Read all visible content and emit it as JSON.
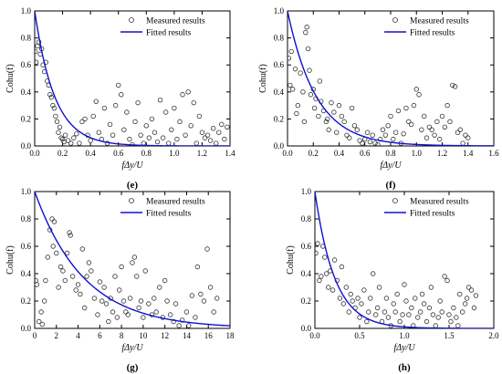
{
  "legend": {
    "measured": "Measured results",
    "fitted": "Fitted results"
  },
  "colors": {
    "fitted": "#1010d0",
    "marker": "#333333",
    "axis": "#000000"
  },
  "chart_data": [
    {
      "id": "e",
      "type": "scatter",
      "panel_label": "(e)",
      "xlabel": "fΔy/U",
      "ylabel": "Cohu(f)",
      "xlim": [
        0,
        1.4
      ],
      "ylim": [
        0,
        1.0
      ],
      "xticks": [
        "0.0",
        "0.2",
        "0.4",
        "0.6",
        "0.8",
        "1.0",
        "1.2",
        "1.4"
      ],
      "yticks": [
        "0.0",
        "0.2",
        "0.4",
        "0.6",
        "0.8",
        "1.0"
      ],
      "legend_position": "top-right",
      "fit_decay": 7.0,
      "series": [
        {
          "name": "Measured results",
          "x": [
            0.005,
            0.01,
            0.02,
            0.03,
            0.04,
            0.05,
            0.06,
            0.07,
            0.08,
            0.09,
            0.1,
            0.11,
            0.12,
            0.13,
            0.14,
            0.15,
            0.16,
            0.17,
            0.18,
            0.19,
            0.2,
            0.21,
            0.22,
            0.24,
            0.26,
            0.28,
            0.3,
            0.32,
            0.34,
            0.36,
            0.38,
            0.4,
            0.42,
            0.44,
            0.46,
            0.48,
            0.5,
            0.52,
            0.54,
            0.56,
            0.58,
            0.6,
            0.62,
            0.64,
            0.66,
            0.68,
            0.7,
            0.72,
            0.74,
            0.76,
            0.78,
            0.8,
            0.82,
            0.84,
            0.86,
            0.88,
            0.9,
            0.92,
            0.94,
            0.96,
            0.98,
            1.0,
            1.02,
            1.04,
            1.06,
            1.08,
            1.1,
            1.12,
            1.14,
            1.16,
            1.18,
            1.2,
            1.22,
            1.24,
            1.26,
            1.28,
            1.3,
            1.32,
            1.34,
            1.36,
            1.38
          ],
          "y": [
            0.7,
            0.62,
            0.74,
            0.77,
            0.68,
            0.72,
            0.6,
            0.55,
            0.62,
            0.48,
            0.45,
            0.38,
            0.36,
            0.3,
            0.28,
            0.22,
            0.18,
            0.1,
            0.14,
            0.06,
            0.05,
            0.03,
            0.08,
            0.04,
            0.02,
            0.06,
            0.09,
            0.02,
            0.18,
            0.2,
            0.08,
            0.04,
            0.22,
            0.33,
            0.1,
            0.05,
            0.28,
            0.02,
            0.16,
            0.08,
            0.3,
            0.45,
            0.38,
            0.12,
            0.25,
            0.05,
            0.01,
            0.18,
            0.32,
            0.08,
            0.02,
            0.15,
            0.06,
            0.2,
            0.1,
            0.03,
            0.34,
            0.06,
            0.25,
            0.02,
            0.12,
            0.28,
            0.05,
            0.18,
            0.38,
            0.08,
            0.4,
            0.15,
            0.32,
            0.02,
            0.22,
            0.1,
            0.06,
            0.08,
            0.04,
            0.13,
            0.02,
            0.1,
            0.16,
            0.05,
            0.14
          ]
        },
        {
          "name": "Fitted results",
          "x": [],
          "y": []
        }
      ]
    },
    {
      "id": "f",
      "type": "scatter",
      "panel_label": "(f)",
      "xlabel": "fΔy/U",
      "ylabel": "Cohu(f)",
      "xlim": [
        0,
        1.6
      ],
      "ylim": [
        0,
        1.0
      ],
      "xticks": [
        "0.0",
        "0.2",
        "0.4",
        "0.6",
        "0.8",
        "1.0",
        "1.2",
        "1.4",
        "1.6"
      ],
      "yticks": [
        "0.0",
        "0.2",
        "0.4",
        "0.6",
        "0.8",
        "1.0"
      ],
      "legend_position": "top-right",
      "fit_decay": 4.5,
      "series": [
        {
          "name": "Measured results",
          "x": [
            0.01,
            0.02,
            0.03,
            0.04,
            0.06,
            0.07,
            0.08,
            0.1,
            0.12,
            0.13,
            0.14,
            0.15,
            0.16,
            0.17,
            0.18,
            0.2,
            0.21,
            0.22,
            0.24,
            0.25,
            0.26,
            0.28,
            0.3,
            0.31,
            0.32,
            0.34,
            0.36,
            0.38,
            0.4,
            0.42,
            0.44,
            0.46,
            0.48,
            0.5,
            0.52,
            0.54,
            0.56,
            0.58,
            0.6,
            0.62,
            0.64,
            0.66,
            0.68,
            0.7,
            0.72,
            0.74,
            0.76,
            0.78,
            0.8,
            0.82,
            0.84,
            0.86,
            0.88,
            0.9,
            0.92,
            0.94,
            0.96,
            0.98,
            1.0,
            1.02,
            1.04,
            1.06,
            1.08,
            1.1,
            1.12,
            1.14,
            1.16,
            1.18,
            1.2,
            1.22,
            1.24,
            1.26,
            1.28,
            1.3,
            1.32,
            1.34,
            1.36,
            1.38,
            1.4
          ],
          "y": [
            0.65,
            0.45,
            0.7,
            0.42,
            0.57,
            0.24,
            0.3,
            0.54,
            0.4,
            0.18,
            0.84,
            0.88,
            0.72,
            0.56,
            0.38,
            0.42,
            0.28,
            0.35,
            0.22,
            0.48,
            0.33,
            0.26,
            0.18,
            0.2,
            0.12,
            0.32,
            0.25,
            0.1,
            0.3,
            0.22,
            0.18,
            0.08,
            0.06,
            0.28,
            0.15,
            0.12,
            0.04,
            0.02,
            0.05,
            0.1,
            0.03,
            0.08,
            0.02,
            0.01,
            0.05,
            0.12,
            0.08,
            0.15,
            0.22,
            0.05,
            0.1,
            0.26,
            0.02,
            0.09,
            0.28,
            0.18,
            0.16,
            0.3,
            0.42,
            0.38,
            0.12,
            0.22,
            0.06,
            0.14,
            0.12,
            0.08,
            0.18,
            0.05,
            0.22,
            0.14,
            0.3,
            0.18,
            0.45,
            0.44,
            0.1,
            0.12,
            0.02,
            0.08,
            0.06
          ]
        },
        {
          "name": "Fitted results",
          "x": [],
          "y": []
        }
      ]
    },
    {
      "id": "g",
      "type": "scatter",
      "panel_label": "(g)",
      "xlabel": "fΔy/U",
      "ylabel": "Cohu(f)",
      "xlim": [
        0,
        18
      ],
      "ylim": [
        0,
        1.0
      ],
      "xticks": [
        "0",
        "2",
        "4",
        "6",
        "8",
        "10",
        "12",
        "14",
        "16",
        "18"
      ],
      "yticks": [
        "0.0",
        "0.2",
        "0.4",
        "0.6",
        "0.8",
        "1.0"
      ],
      "legend_position": "top-right",
      "fit_decay": 0.22,
      "series": [
        {
          "name": "Measured results",
          "x": [
            0.1,
            0.2,
            0.4,
            0.6,
            0.7,
            0.9,
            1.0,
            1.2,
            1.4,
            1.6,
            1.7,
            1.8,
            2.0,
            2.2,
            2.4,
            2.6,
            2.8,
            3.0,
            3.2,
            3.3,
            3.5,
            3.8,
            4.0,
            4.2,
            4.4,
            4.6,
            4.8,
            5.0,
            5.2,
            5.5,
            5.8,
            6.0,
            6.2,
            6.4,
            6.6,
            6.8,
            7.0,
            7.2,
            7.4,
            7.6,
            7.8,
            8.0,
            8.2,
            8.4,
            8.6,
            8.8,
            9.0,
            9.2,
            9.4,
            9.6,
            9.8,
            10.0,
            10.2,
            10.5,
            10.8,
            11.0,
            11.2,
            11.5,
            11.8,
            12.0,
            12.2,
            12.5,
            12.8,
            13.0,
            13.3,
            13.6,
            14.0,
            14.2,
            14.5,
            14.8,
            15.0,
            15.3,
            15.6,
            15.9,
            16.2,
            16.5,
            16.8
          ],
          "y": [
            0.35,
            0.32,
            0.05,
            0.12,
            0.03,
            0.2,
            0.35,
            0.52,
            0.72,
            0.8,
            0.6,
            0.78,
            0.55,
            0.3,
            0.45,
            0.42,
            0.35,
            0.55,
            0.7,
            0.68,
            0.38,
            0.28,
            0.32,
            0.25,
            0.58,
            0.15,
            0.38,
            0.48,
            0.42,
            0.22,
            0.1,
            0.34,
            0.2,
            0.3,
            0.18,
            0.05,
            0.22,
            0.12,
            0.38,
            0.08,
            0.28,
            0.45,
            0.2,
            0.12,
            0.1,
            0.22,
            0.48,
            0.52,
            0.38,
            0.15,
            0.2,
            0.08,
            0.42,
            0.18,
            0.1,
            0.22,
            0.12,
            0.3,
            0.08,
            0.35,
            0.2,
            0.1,
            0.05,
            0.18,
            0.02,
            0.06,
            0.12,
            0.02,
            0.24,
            0.08,
            0.45,
            0.25,
            0.2,
            0.58,
            0.3,
            0.12,
            0.22
          ]
        },
        {
          "name": "Fitted results",
          "x": [],
          "y": []
        }
      ]
    },
    {
      "id": "h",
      "type": "scatter",
      "panel_label": "(h)",
      "xlabel": "fΔy/U",
      "ylabel": "Cohu(f)",
      "xlim": [
        0,
        2.0
      ],
      "ylim": [
        0,
        1.0
      ],
      "xticks": [
        "0.0",
        "0.5",
        "1.0",
        "1.5",
        "2.0"
      ],
      "yticks": [
        "0.0",
        "0.2",
        "0.4",
        "0.6",
        "0.8",
        "1.0"
      ],
      "legend_position": "top-right",
      "fit_decay": 4.5,
      "series": [
        {
          "name": "Measured results",
          "x": [
            0.01,
            0.03,
            0.05,
            0.07,
            0.09,
            0.11,
            0.13,
            0.15,
            0.17,
            0.2,
            0.22,
            0.25,
            0.28,
            0.3,
            0.32,
            0.35,
            0.38,
            0.4,
            0.42,
            0.45,
            0.48,
            0.5,
            0.52,
            0.55,
            0.58,
            0.6,
            0.62,
            0.65,
            0.68,
            0.7,
            0.72,
            0.75,
            0.78,
            0.8,
            0.82,
            0.85,
            0.88,
            0.9,
            0.92,
            0.95,
            0.98,
            1.0,
            1.02,
            1.05,
            1.08,
            1.1,
            1.12,
            1.15,
            1.18,
            1.2,
            1.22,
            1.25,
            1.28,
            1.3,
            1.32,
            1.35,
            1.38,
            1.4,
            1.42,
            1.45,
            1.48,
            1.5,
            1.52,
            1.55,
            1.58,
            1.6,
            1.62,
            1.65,
            1.68,
            1.7,
            1.72,
            1.75,
            1.78,
            1.8
          ],
          "y": [
            0.55,
            0.62,
            0.35,
            0.38,
            0.6,
            0.52,
            0.4,
            0.3,
            0.42,
            0.28,
            0.5,
            0.35,
            0.22,
            0.45,
            0.18,
            0.3,
            0.12,
            0.25,
            0.2,
            0.15,
            0.22,
            0.08,
            0.18,
            0.28,
            0.05,
            0.12,
            0.22,
            0.4,
            0.1,
            0.15,
            0.3,
            0.05,
            0.12,
            0.22,
            0.08,
            0.02,
            0.18,
            0.12,
            0.25,
            0.05,
            0.1,
            0.32,
            0.2,
            0.1,
            0.15,
            0.02,
            0.22,
            0.08,
            0.12,
            0.25,
            0.18,
            0.05,
            0.15,
            0.3,
            0.1,
            0.02,
            0.08,
            0.2,
            0.12,
            0.38,
            0.35,
            0.1,
            0.05,
            0.15,
            0.08,
            0.02,
            0.25,
            0.12,
            0.18,
            0.22,
            0.3,
            0.28,
            0.15,
            0.24
          ]
        },
        {
          "name": "Fitted results",
          "x": [],
          "y": []
        }
      ]
    }
  ]
}
